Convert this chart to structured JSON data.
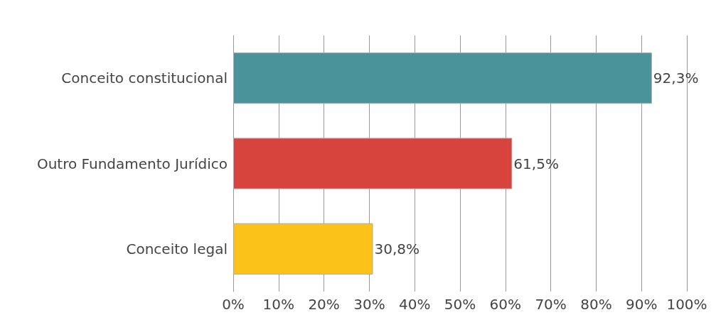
{
  "chart_data": {
    "type": "bar",
    "orientation": "horizontal",
    "categories": [
      "Conceito constitucional",
      "Outro Fundamento Jurídico",
      "Conceito legal"
    ],
    "values": [
      92.3,
      61.5,
      30.8
    ],
    "colors": [
      "#4a939b",
      "#d6443d",
      "#fbc31a"
    ],
    "value_labels": [
      "92,3%",
      "61,5%",
      "30,8%"
    ],
    "xlim": [
      0,
      100
    ],
    "xticks": [
      {
        "value": 0,
        "label": "0%"
      },
      {
        "value": 10,
        "label": "10%"
      },
      {
        "value": 20,
        "label": "20%"
      },
      {
        "value": 30,
        "label": "30%"
      },
      {
        "value": 40,
        "label": "40%"
      },
      {
        "value": 50,
        "label": "50%"
      },
      {
        "value": 60,
        "label": "60%"
      },
      {
        "value": 70,
        "label": "70%"
      },
      {
        "value": 80,
        "label": "80%"
      },
      {
        "value": 90,
        "label": "90%"
      },
      {
        "value": 100,
        "label": "100%"
      }
    ],
    "grid": "x"
  }
}
